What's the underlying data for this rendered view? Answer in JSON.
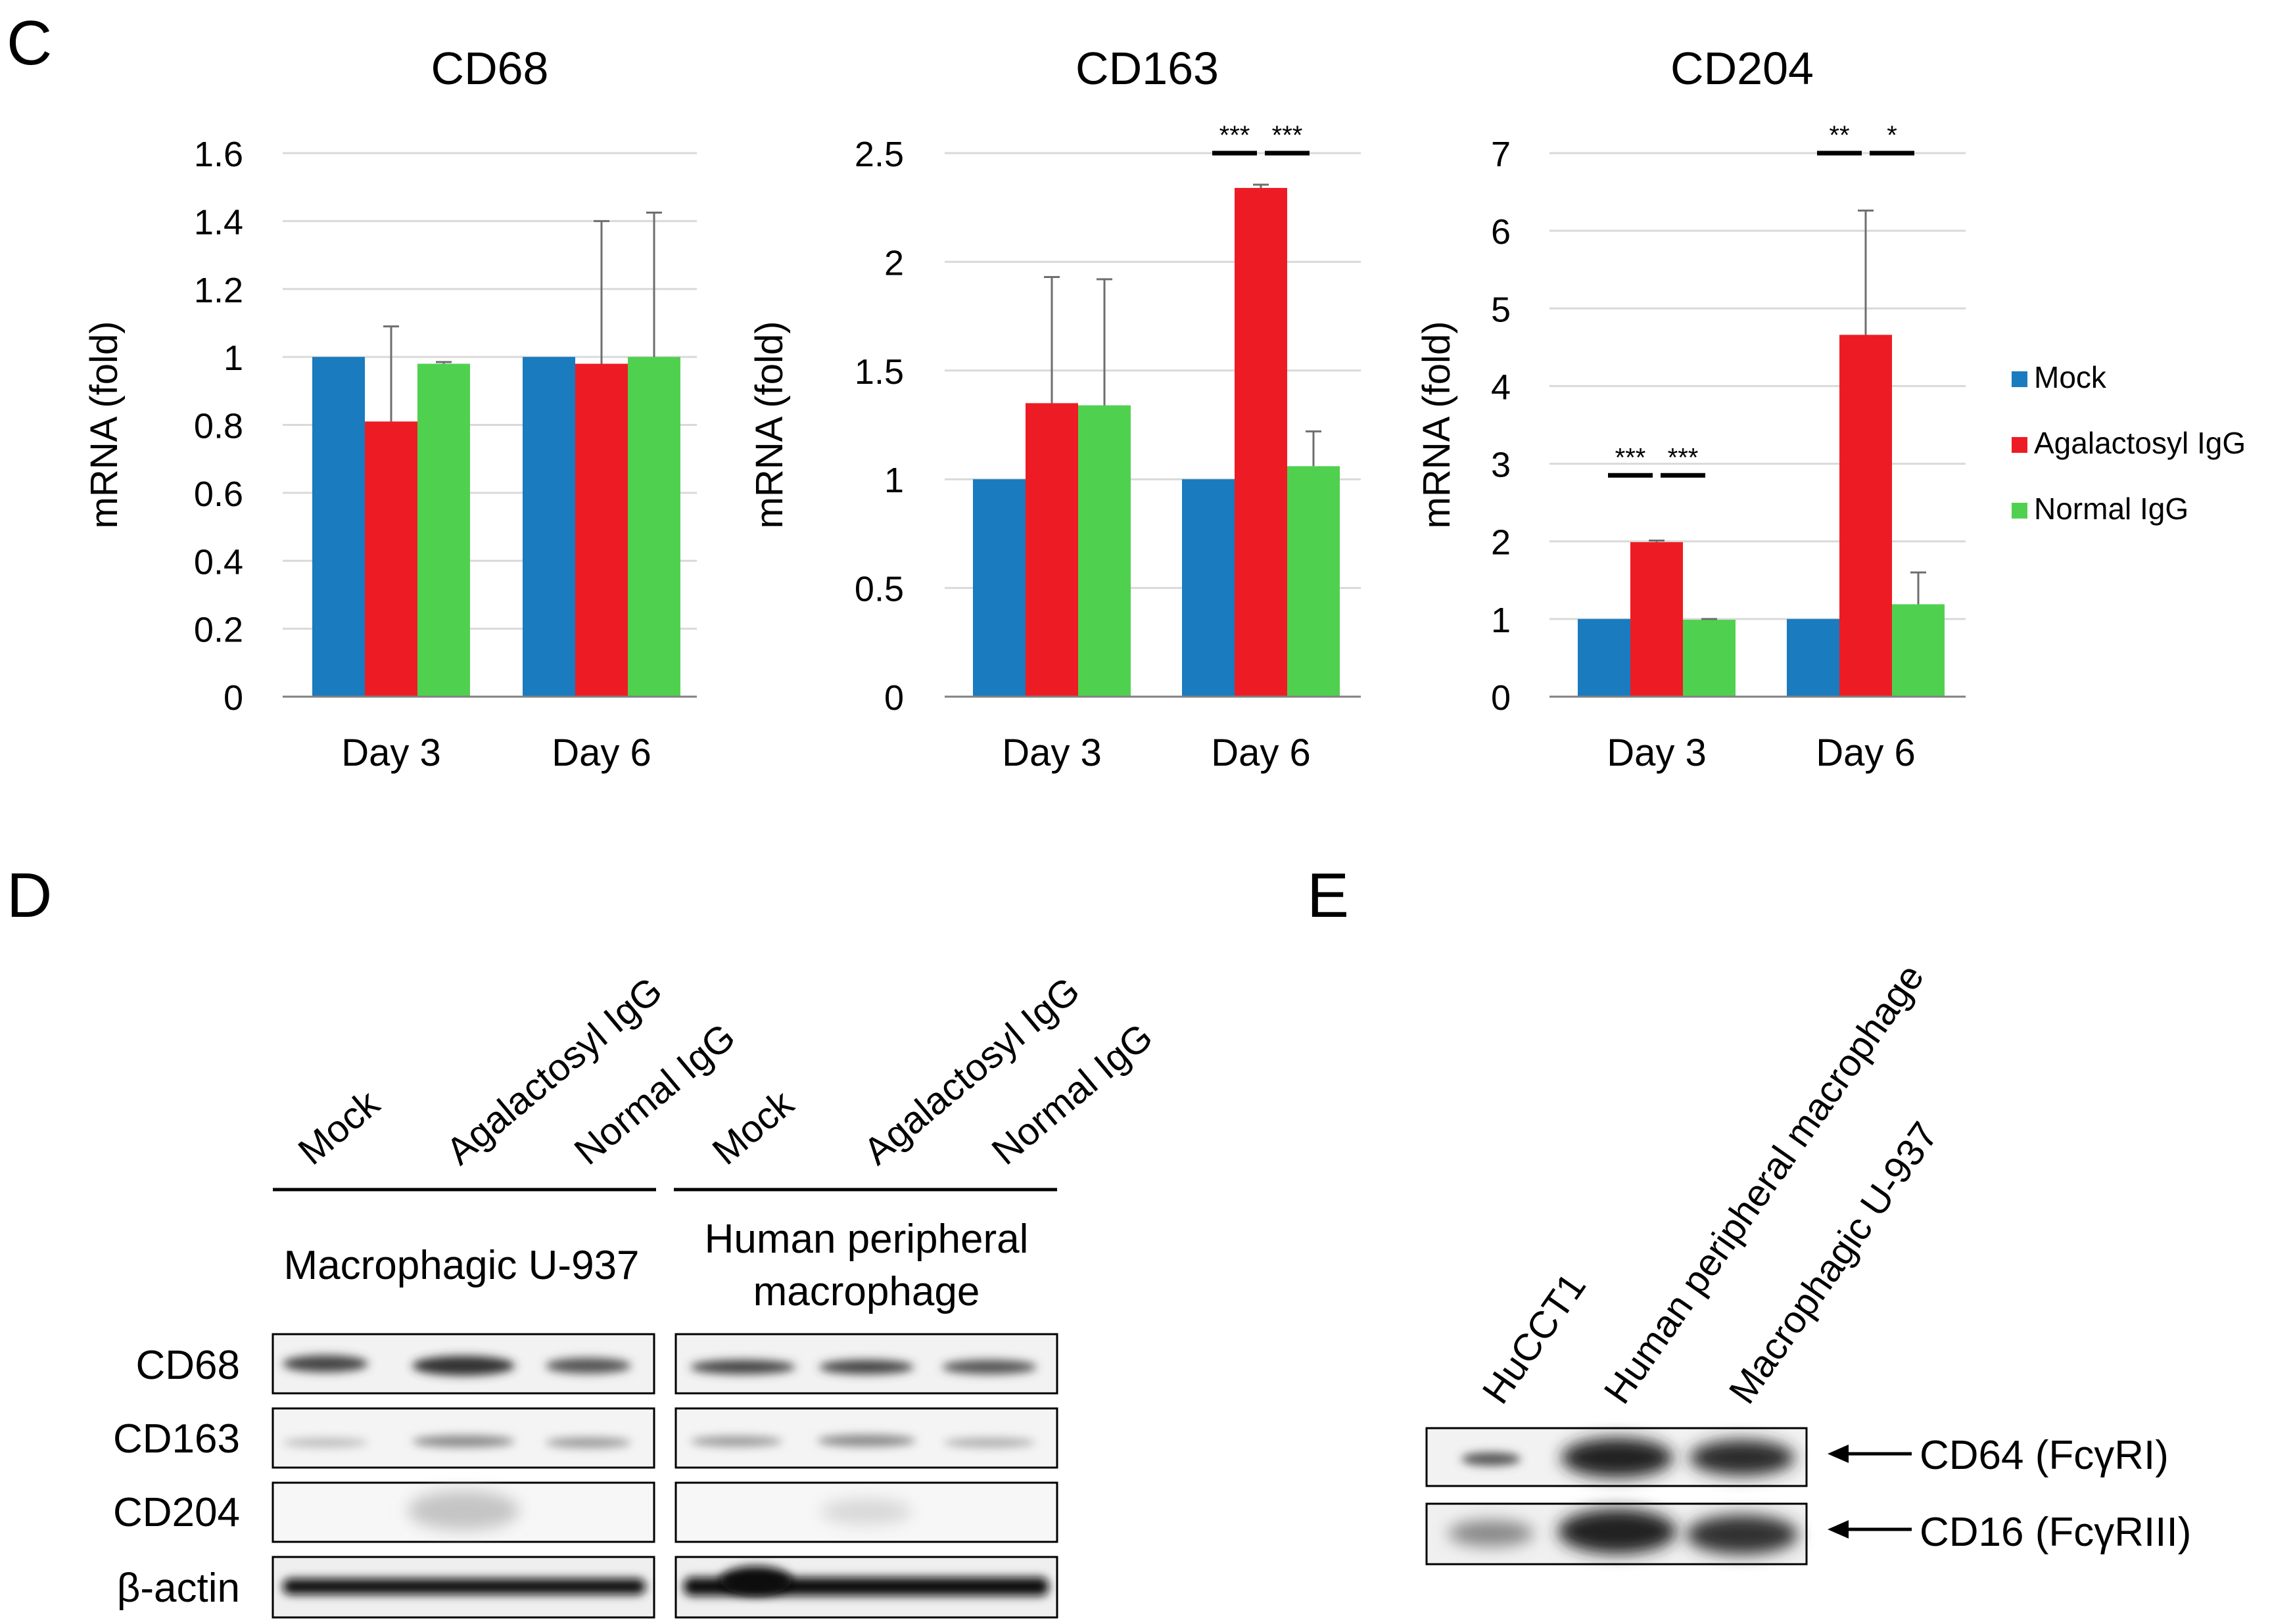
{
  "figure": {
    "panel_labels": {
      "c": "C",
      "d": "D",
      "e": "E"
    }
  },
  "colors": {
    "mock": "#1a7bbf",
    "agal": "#ed1c24",
    "normal": "#4fd14f",
    "grid": "#d9d9d9",
    "axis": "#808080",
    "error": "#6e6e6e",
    "sig": "#000000"
  },
  "chart_data": [
    {
      "type": "bar",
      "title": "CD68",
      "ylabel": "mRNA (fold)",
      "xlabel": "",
      "ylim": [
        0,
        1.6
      ],
      "yticks": [
        0,
        0.2,
        0.4,
        0.6,
        0.8,
        1,
        1.2,
        1.4,
        1.6
      ],
      "ytick_labels": [
        "0",
        "0.2",
        "0.4",
        "0.6",
        "0.8",
        "1",
        "1.2",
        "1.4",
        "1.6"
      ],
      "categories": [
        "Day 3",
        "Day 6"
      ],
      "series": [
        {
          "name": "Mock",
          "color": "#1a7bbf",
          "values": [
            1,
            1
          ],
          "errors": [
            0,
            0
          ]
        },
        {
          "name": "Agalactosyl IgG",
          "color": "#ed1c24",
          "values": [
            0.81,
            0.98
          ],
          "errors": [
            0.28,
            0.42
          ]
        },
        {
          "name": "Normal IgG",
          "color": "#4fd14f",
          "values": [
            0.98,
            1.0
          ],
          "errors": [
            0.005,
            0.425
          ]
        }
      ],
      "significance": []
    },
    {
      "type": "bar",
      "title": "CD163",
      "ylabel": "mRNA (fold)",
      "xlabel": "",
      "ylim": [
        0,
        2.5
      ],
      "yticks": [
        0,
        0.5,
        1,
        1.5,
        2,
        2.5
      ],
      "ytick_labels": [
        "0",
        "0.5",
        "1",
        "1.5",
        "2",
        "2.5"
      ],
      "categories": [
        "Day 3",
        "Day 6"
      ],
      "series": [
        {
          "name": "Mock",
          "color": "#1a7bbf",
          "values": [
            1,
            1
          ],
          "errors": [
            0,
            0
          ]
        },
        {
          "name": "Agalactosyl IgG",
          "color": "#ed1c24",
          "values": [
            1.35,
            2.34
          ],
          "errors": [
            0.58,
            0.015
          ]
        },
        {
          "name": "Normal IgG",
          "color": "#4fd14f",
          "values": [
            1.34,
            1.06
          ],
          "errors": [
            0.58,
            0.16
          ]
        }
      ],
      "significance": [
        {
          "category": 1,
          "from": 0,
          "to": 1,
          "level": 2.5,
          "label": "***"
        },
        {
          "category": 1,
          "from": 1,
          "to": 2,
          "level": 2.5,
          "label": "***"
        }
      ]
    },
    {
      "type": "bar",
      "title": "CD204",
      "ylabel": "mRNA (fold)",
      "xlabel": "",
      "ylim": [
        0,
        7
      ],
      "yticks": [
        0,
        1,
        2,
        3,
        4,
        5,
        6,
        7
      ],
      "ytick_labels": [
        "0",
        "1",
        "2",
        "3",
        "4",
        "5",
        "6",
        "7"
      ],
      "categories": [
        "Day 3",
        "Day 6"
      ],
      "series": [
        {
          "name": "Mock",
          "color": "#1a7bbf",
          "values": [
            1,
            1
          ],
          "errors": [
            0,
            0
          ]
        },
        {
          "name": "Agalactosyl IgG",
          "color": "#ed1c24",
          "values": [
            1.99,
            4.66
          ],
          "errors": [
            0.02,
            1.6
          ]
        },
        {
          "name": "Normal IgG",
          "color": "#4fd14f",
          "values": [
            0.99,
            1.19
          ],
          "errors": [
            0.01,
            0.41
          ]
        }
      ],
      "significance": [
        {
          "category": 0,
          "from": 0,
          "to": 1,
          "level": 2.85,
          "label": "***"
        },
        {
          "category": 0,
          "from": 1,
          "to": 2,
          "level": 2.85,
          "label": "***"
        },
        {
          "category": 1,
          "from": 0,
          "to": 1,
          "level": 7.0,
          "label": "**"
        },
        {
          "category": 1,
          "from": 1,
          "to": 2,
          "level": 7.0,
          "label": "*"
        }
      ]
    }
  ],
  "legend": {
    "items": [
      "Mock",
      "Agalactosyl IgG",
      "Normal IgG"
    ]
  },
  "blot_d": {
    "lane_labels_left": [
      "Mock",
      "Agalactosyl IgG",
      "Normal IgG"
    ],
    "lane_labels_right": [
      "Mock",
      "Agalactosyl IgG",
      "Normal IgG"
    ],
    "group_left": "Macrophagic U-937",
    "group_right_line1": "Human peripheral",
    "group_right_line2": "macrophage",
    "rows": [
      "CD68",
      "CD163",
      "CD204",
      "β-actin"
    ]
  },
  "blot_e": {
    "lane_labels": [
      "HuCCT1",
      "Human peripheral macrophage",
      "Macrophagic U-937"
    ],
    "rows": [
      "CD64 (FcγRI)",
      "CD16 (FcγRIII)"
    ]
  }
}
